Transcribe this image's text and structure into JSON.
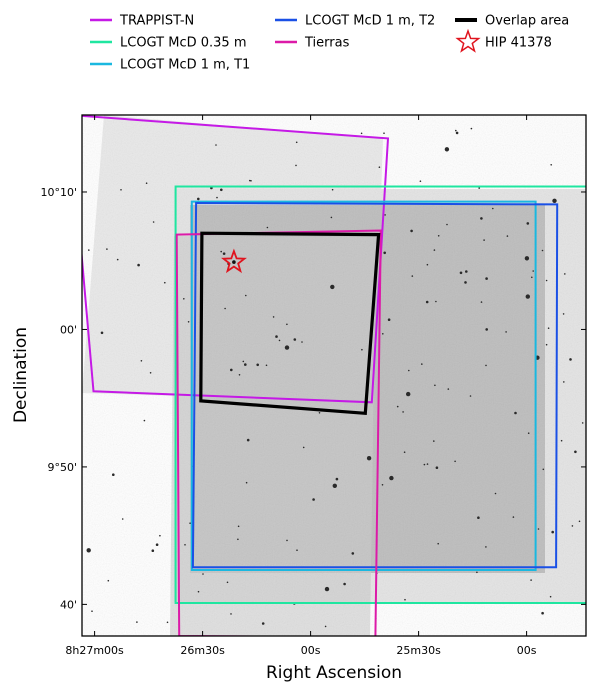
{
  "chart_data": {
    "type": "sky-footprint",
    "xlabel": "Right Ascension",
    "ylabel": "Declination",
    "legend": [
      {
        "name": "TRAPPIST-N",
        "color": "#c519e6",
        "kind": "line"
      },
      {
        "name": "LCOGT McD 0.35 m",
        "color": "#1fe6a0",
        "kind": "line"
      },
      {
        "name": "LCOGT McD 1 m, T1",
        "color": "#1ab8e0",
        "kind": "line"
      },
      {
        "name": "LCOGT McD 1 m, T2",
        "color": "#1a50e6",
        "kind": "line"
      },
      {
        "name": "Tierras",
        "color": "#dc1aa8",
        "kind": "line"
      },
      {
        "name": "Overlap area",
        "color": "#000000",
        "kind": "line"
      },
      {
        "name": "HIP 41378",
        "color": "#e0141e",
        "kind": "star"
      }
    ],
    "x_ticks": [
      {
        "label": "8h27m00s",
        "ra_s": 0
      },
      {
        "label": "26m30s",
        "ra_s": 30
      },
      {
        "label": "00s",
        "ra_s": 60
      },
      {
        "label": "25m30s",
        "ra_s": 90
      },
      {
        "label": "00s",
        "ra_s": 120
      }
    ],
    "y_ticks": [
      {
        "label": "10°10'",
        "dec_arcmin": 10
      },
      {
        "label": "00'",
        "dec_arcmin": 0
      },
      {
        "label": "9°50'",
        "dec_arcmin": -10
      },
      {
        "label": "40'",
        "dec_arcmin": -20
      }
    ],
    "x_range_s": [
      -3.5,
      136.5
    ],
    "y_range_arcmin": [
      -22.3,
      15.6
    ],
    "x_inverted": true,
    "footprints": [
      {
        "name": "TRAPPIST-N",
        "color": "#c519e6",
        "corners": [
          [
            -7,
            15.6
          ],
          [
            -0.3,
            -4.5
          ],
          [
            77,
            -5.3
          ],
          [
            81.5,
            13.9
          ]
        ]
      },
      {
        "name": "LCOGT McD 0.35 m",
        "color": "#1fe6a0",
        "corners": [
          [
            22.5,
            10.4
          ],
          [
            22.5,
            -19.9
          ],
          [
            137.5,
            -19.9
          ],
          [
            137.5,
            10.4
          ]
        ]
      },
      {
        "name": "LCOGT McD 1 m, T1",
        "color": "#1ab8e0",
        "corners": [
          [
            27,
            9.3
          ],
          [
            27,
            -17.5
          ],
          [
            122.5,
            -17.5
          ],
          [
            122.5,
            9.3
          ]
        ]
      },
      {
        "name": "LCOGT McD 1 m, T2",
        "color": "#1a50e6",
        "corners": [
          [
            28.2,
            9.2
          ],
          [
            27.3,
            -17.3
          ],
          [
            128.2,
            -17.3
          ],
          [
            128.5,
            9.1
          ]
        ]
      },
      {
        "name": "Tierras",
        "color": "#dc1aa8",
        "corners": [
          [
            22.8,
            6.9
          ],
          [
            23.5,
            -22.3
          ],
          [
            78,
            -22.4
          ],
          [
            79.5,
            7.2
          ]
        ]
      },
      {
        "name": "Overlap area",
        "color": "#000000",
        "corners": [
          [
            29.8,
            7.0
          ],
          [
            29.5,
            -5.2
          ],
          [
            75.2,
            -6.1
          ],
          [
            78.9,
            6.9
          ]
        ]
      }
    ],
    "target": {
      "name": "HIP 41378",
      "ra_s": 38.7,
      "dec_arcmin": 4.9
    }
  }
}
